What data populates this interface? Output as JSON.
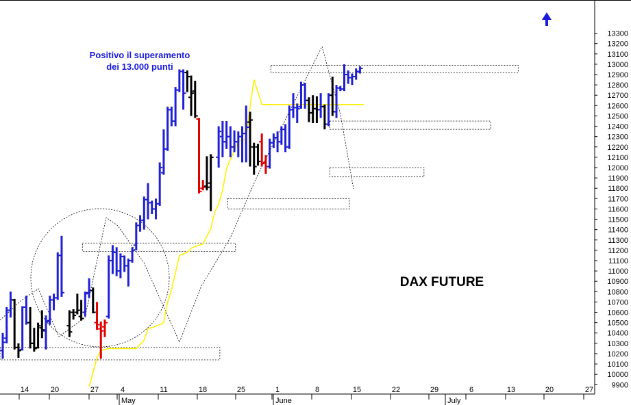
{
  "chart_data": {
    "type": "bar",
    "subtype": "ohlc",
    "title": "DAX FUTURE",
    "annotation": [
      "Positivo il superamento",
      "dei 13.000 punti"
    ],
    "y_range": [
      9800,
      13350
    ],
    "y_ticks": [
      9900,
      10000,
      10100,
      10200,
      10300,
      10400,
      10500,
      10600,
      10700,
      10800,
      10900,
      11000,
      11100,
      11200,
      11300,
      11400,
      11500,
      11600,
      11700,
      11800,
      11900,
      12000,
      12100,
      12200,
      12300,
      12400,
      12500,
      12600,
      12700,
      12800,
      12900,
      13000,
      13100,
      13200,
      13300
    ],
    "x_tick_labels": [
      "14",
      "20",
      "27",
      "4",
      "11",
      "18",
      "25",
      "1",
      "8",
      "15",
      "22",
      "29",
      "6",
      "13",
      "20",
      "27"
    ],
    "month_labels": [
      "May",
      "June",
      "July"
    ],
    "grid": false,
    "colors": {
      "up": "#1f1fd6",
      "down": "#000000",
      "neutral": "#e00000",
      "moving_average": "#ffef00",
      "arrow": "#1a1adc"
    },
    "bars": [
      {
        "x": 0,
        "o": 10230,
        "h": 10400,
        "l": 10150,
        "c": 10310,
        "t": "u"
      },
      {
        "x": 1,
        "o": 10350,
        "h": 10650,
        "l": 10300,
        "c": 10620,
        "t": "u"
      },
      {
        "x": 2,
        "o": 10620,
        "h": 10800,
        "l": 10550,
        "c": 10720,
        "t": "u"
      },
      {
        "x": 3,
        "o": 10720,
        "h": 10730,
        "l": 10240,
        "c": 10260,
        "t": "d"
      },
      {
        "x": 4,
        "o": 10260,
        "h": 10300,
        "l": 10160,
        "c": 10230,
        "t": "d"
      },
      {
        "x": 5,
        "o": 10240,
        "h": 10660,
        "l": 10230,
        "c": 10650,
        "t": "u"
      },
      {
        "x": 6,
        "o": 10650,
        "h": 10760,
        "l": 10480,
        "c": 10500,
        "t": "u"
      },
      {
        "x": 7,
        "o": 10500,
        "h": 10650,
        "l": 10250,
        "c": 10300,
        "t": "d"
      },
      {
        "x": 8,
        "o": 10300,
        "h": 10450,
        "l": 10220,
        "c": 10250,
        "t": "d"
      },
      {
        "x": 9,
        "o": 10260,
        "h": 10500,
        "l": 10250,
        "c": 10470,
        "t": "d"
      },
      {
        "x": 10,
        "o": 10450,
        "h": 10620,
        "l": 10350,
        "c": 10430,
        "t": "d"
      },
      {
        "x": 11,
        "o": 10420,
        "h": 10570,
        "l": 10240,
        "c": 10510,
        "t": "u"
      },
      {
        "x": 12,
        "o": 10520,
        "h": 10760,
        "l": 10480,
        "c": 10720,
        "t": "u"
      },
      {
        "x": 13,
        "o": 10720,
        "h": 10780,
        "l": 10620,
        "c": 10740,
        "t": "u"
      },
      {
        "x": 14,
        "o": 10740,
        "h": 11180,
        "l": 10720,
        "c": 11150,
        "t": "u"
      },
      {
        "x": 15,
        "o": 11150,
        "h": 11340,
        "l": 10750,
        "c": 10790,
        "t": "u"
      },
      {
        "x": 17,
        "o": 10470,
        "h": 10620,
        "l": 10360,
        "c": 10410,
        "t": "d"
      },
      {
        "x": 18,
        "o": 10600,
        "h": 10630,
        "l": 10530,
        "c": 10570,
        "t": "d"
      },
      {
        "x": 19,
        "o": 10600,
        "h": 10780,
        "l": 10580,
        "c": 10620,
        "t": "d"
      },
      {
        "x": 20,
        "o": 10560,
        "h": 10720,
        "l": 10520,
        "c": 10540,
        "t": "d"
      },
      {
        "x": 21,
        "o": 10600,
        "h": 10800,
        "l": 10560,
        "c": 10780,
        "t": "u"
      },
      {
        "x": 22,
        "o": 10790,
        "h": 10930,
        "l": 10740,
        "c": 10810,
        "t": "u"
      },
      {
        "x": 23,
        "o": 10810,
        "h": 10840,
        "l": 10590,
        "c": 10600,
        "t": "d"
      },
      {
        "x": 24,
        "o": 10500,
        "h": 10700,
        "l": 10430,
        "c": 10480,
        "t": "n"
      },
      {
        "x": 25,
        "o": 10440,
        "h": 10510,
        "l": 10150,
        "c": 10420,
        "t": "n"
      },
      {
        "x": 26,
        "o": 10460,
        "h": 10530,
        "l": 10360,
        "c": 10500,
        "t": "n"
      },
      {
        "x": 27,
        "o": 10560,
        "h": 11150,
        "l": 10540,
        "c": 11100,
        "t": "u"
      },
      {
        "x": 28,
        "o": 11100,
        "h": 11250,
        "l": 10970,
        "c": 11180,
        "t": "u"
      },
      {
        "x": 29,
        "o": 11180,
        "h": 11230,
        "l": 10950,
        "c": 11000,
        "t": "u"
      },
      {
        "x": 30,
        "o": 11000,
        "h": 11170,
        "l": 10930,
        "c": 11140,
        "t": "u"
      },
      {
        "x": 31,
        "o": 11140,
        "h": 11150,
        "l": 10990,
        "c": 11050,
        "t": "u"
      },
      {
        "x": 32,
        "o": 11050,
        "h": 11120,
        "l": 10850,
        "c": 11100,
        "t": "u"
      },
      {
        "x": 33,
        "o": 11100,
        "h": 11230,
        "l": 11080,
        "c": 11200,
        "t": "u"
      },
      {
        "x": 34,
        "o": 11250,
        "h": 11470,
        "l": 11200,
        "c": 11440,
        "t": "u"
      },
      {
        "x": 35,
        "o": 11440,
        "h": 11540,
        "l": 11380,
        "c": 11490,
        "t": "u"
      },
      {
        "x": 36,
        "o": 11490,
        "h": 11720,
        "l": 11400,
        "c": 11690,
        "t": "u"
      },
      {
        "x": 37,
        "o": 11690,
        "h": 11850,
        "l": 11500,
        "c": 11660,
        "t": "u"
      },
      {
        "x": 38,
        "o": 11660,
        "h": 11680,
        "l": 11550,
        "c": 11600,
        "t": "u"
      },
      {
        "x": 39,
        "o": 11600,
        "h": 11700,
        "l": 11500,
        "c": 11650,
        "t": "u"
      },
      {
        "x": 40,
        "o": 11650,
        "h": 12050,
        "l": 11630,
        "c": 12000,
        "t": "u"
      },
      {
        "x": 41,
        "o": 11950,
        "h": 12370,
        "l": 11930,
        "c": 12180,
        "t": "u"
      },
      {
        "x": 42,
        "o": 12180,
        "h": 12590,
        "l": 12160,
        "c": 12560,
        "t": "u"
      },
      {
        "x": 43,
        "o": 12560,
        "h": 12590,
        "l": 12400,
        "c": 12450,
        "t": "u"
      },
      {
        "x": 44,
        "o": 12450,
        "h": 12780,
        "l": 12400,
        "c": 12750,
        "t": "u"
      },
      {
        "x": 45,
        "o": 12750,
        "h": 12950,
        "l": 12730,
        "c": 12930,
        "t": "u"
      },
      {
        "x": 46,
        "o": 12930,
        "h": 12950,
        "l": 12560,
        "c": 12720,
        "t": "u"
      },
      {
        "x": 47,
        "o": 12920,
        "h": 12940,
        "l": 12730,
        "c": 12880,
        "t": "d"
      },
      {
        "x": 48,
        "o": 12680,
        "h": 12890,
        "l": 12500,
        "c": 12720,
        "t": "d"
      },
      {
        "x": 49,
        "o": 12740,
        "h": 12840,
        "l": 12480,
        "c": 12500,
        "t": "d"
      },
      {
        "x": 50,
        "o": 12470,
        "h": 12480,
        "l": 11750,
        "c": 11770,
        "t": "n"
      },
      {
        "x": 51,
        "o": 11800,
        "h": 11880,
        "l": 11780,
        "c": 11810,
        "t": "n"
      },
      {
        "x": 52,
        "o": 11820,
        "h": 12110,
        "l": 11780,
        "c": 11810,
        "t": "d"
      },
      {
        "x": 53,
        "o": 11850,
        "h": 12130,
        "l": 11580,
        "c": 12100,
        "t": "d"
      },
      {
        "x": 55,
        "o": 12100,
        "h": 12400,
        "l": 12000,
        "c": 12350,
        "t": "u"
      },
      {
        "x": 56,
        "o": 12300,
        "h": 12450,
        "l": 12100,
        "c": 12250,
        "t": "u"
      },
      {
        "x": 57,
        "o": 12250,
        "h": 12450,
        "l": 12180,
        "c": 12300,
        "t": "u"
      },
      {
        "x": 58,
        "o": 12300,
        "h": 12400,
        "l": 12100,
        "c": 12200,
        "t": "u"
      },
      {
        "x": 59,
        "o": 12200,
        "h": 12360,
        "l": 12150,
        "c": 12250,
        "t": "u"
      },
      {
        "x": 60,
        "o": 12250,
        "h": 12350,
        "l": 12100,
        "c": 12300,
        "t": "u"
      },
      {
        "x": 61,
        "o": 12300,
        "h": 12400,
        "l": 12050,
        "c": 12330,
        "t": "u"
      },
      {
        "x": 62,
        "o": 12330,
        "h": 12600,
        "l": 12050,
        "c": 12390,
        "t": "u"
      },
      {
        "x": 63,
        "o": 12440,
        "h": 12540,
        "l": 12010,
        "c": 12460,
        "t": "d"
      },
      {
        "x": 64,
        "o": 12200,
        "h": 12240,
        "l": 11930,
        "c": 12010,
        "t": "d"
      },
      {
        "x": 65,
        "o": 12200,
        "h": 12230,
        "l": 12020,
        "c": 12060,
        "t": "d"
      },
      {
        "x": 66,
        "o": 12250,
        "h": 12330,
        "l": 12010,
        "c": 12040,
        "t": "n"
      },
      {
        "x": 67,
        "o": 12050,
        "h": 12120,
        "l": 11940,
        "c": 12010,
        "t": "n"
      },
      {
        "x": 68,
        "o": 12010,
        "h": 12280,
        "l": 11990,
        "c": 12240,
        "t": "u"
      },
      {
        "x": 69,
        "o": 12240,
        "h": 12330,
        "l": 12190,
        "c": 12290,
        "t": "u"
      },
      {
        "x": 70,
        "o": 12290,
        "h": 12350,
        "l": 12150,
        "c": 12250,
        "t": "u"
      },
      {
        "x": 71,
        "o": 12250,
        "h": 12400,
        "l": 12220,
        "c": 12370,
        "t": "u"
      },
      {
        "x": 72,
        "o": 12370,
        "h": 12420,
        "l": 12150,
        "c": 12200,
        "t": "u"
      },
      {
        "x": 73,
        "o": 12200,
        "h": 12600,
        "l": 12180,
        "c": 12560,
        "t": "u"
      },
      {
        "x": 74,
        "o": 12560,
        "h": 12720,
        "l": 12480,
        "c": 12580,
        "t": "u"
      },
      {
        "x": 75,
        "o": 12580,
        "h": 12620,
        "l": 12430,
        "c": 12570,
        "t": "u"
      },
      {
        "x": 76,
        "o": 12590,
        "h": 12830,
        "l": 12570,
        "c": 12800,
        "t": "u"
      },
      {
        "x": 77,
        "o": 12800,
        "h": 12820,
        "l": 12570,
        "c": 12650,
        "t": "u"
      },
      {
        "x": 78,
        "o": 12650,
        "h": 12680,
        "l": 12440,
        "c": 12530,
        "t": "d"
      },
      {
        "x": 79,
        "o": 12530,
        "h": 12700,
        "l": 12430,
        "c": 12570,
        "t": "d"
      },
      {
        "x": 80,
        "o": 12570,
        "h": 12690,
        "l": 12430,
        "c": 12560,
        "t": "d"
      },
      {
        "x": 81,
        "o": 12560,
        "h": 12720,
        "l": 12480,
        "c": 12590,
        "t": "u"
      },
      {
        "x": 82,
        "o": 12590,
        "h": 12610,
        "l": 12370,
        "c": 12420,
        "t": "d"
      },
      {
        "x": 83,
        "o": 12420,
        "h": 12720,
        "l": 12400,
        "c": 12700,
        "t": "u"
      },
      {
        "x": 84,
        "o": 12700,
        "h": 12880,
        "l": 12500,
        "c": 12540,
        "t": "d"
      },
      {
        "x": 85,
        "o": 12540,
        "h": 12800,
        "l": 12480,
        "c": 12770,
        "t": "u"
      },
      {
        "x": 86,
        "o": 12770,
        "h": 12790,
        "l": 12740,
        "c": 12760,
        "t": "u"
      },
      {
        "x": 87,
        "o": 12760,
        "h": 13000,
        "l": 12740,
        "c": 12900,
        "t": "u"
      },
      {
        "x": 88,
        "o": 12900,
        "h": 12940,
        "l": 12810,
        "c": 12870,
        "t": "u"
      },
      {
        "x": 89,
        "o": 12870,
        "h": 12910,
        "l": 12800,
        "c": 12880,
        "t": "u"
      },
      {
        "x": 90,
        "o": 12880,
        "h": 12960,
        "l": 12850,
        "c": 12930,
        "t": "u"
      },
      {
        "x": 91,
        "o": 12930,
        "h": 12980,
        "l": 12910,
        "c": 12960,
        "t": "u"
      }
    ],
    "moving_average": [
      [
        22,
        9880
      ],
      [
        24,
        10160
      ],
      [
        25,
        10230
      ],
      [
        27,
        10250
      ],
      [
        29,
        10250
      ],
      [
        33,
        10250
      ],
      [
        34,
        10250
      ],
      [
        36,
        10330
      ],
      [
        37,
        10440
      ],
      [
        40,
        10480
      ],
      [
        41,
        10500
      ],
      [
        42,
        10700
      ],
      [
        43,
        10820
      ],
      [
        45,
        11150
      ],
      [
        47,
        11180
      ],
      [
        48,
        11220
      ],
      [
        50,
        11250
      ],
      [
        51,
        11260
      ],
      [
        53,
        11410
      ],
      [
        54,
        11570
      ],
      [
        55,
        11650
      ],
      [
        56,
        11780
      ],
      [
        57,
        11990
      ],
      [
        58,
        12080
      ],
      [
        60,
        12250
      ],
      [
        62,
        12280
      ],
      [
        63,
        12590
      ],
      [
        64,
        12850
      ],
      [
        66,
        12610
      ],
      [
        70,
        12610
      ],
      [
        75,
        12610
      ],
      [
        80,
        12610
      ],
      [
        85,
        12610
      ],
      [
        90,
        12610
      ],
      [
        92,
        12610
      ]
    ],
    "support_resistance_zones": [
      {
        "x0": 0,
        "x1": 56,
        "y0": 10140,
        "y1": 10260
      },
      {
        "x0": 21,
        "x1": 60,
        "y0": 11190,
        "y1": 11270
      },
      {
        "x0": 58,
        "x1": 89,
        "y0": 11600,
        "y1": 11700
      },
      {
        "x0": 84,
        "x1": 108,
        "y0": 11910,
        "y1": 12000
      },
      {
        "x0": 84,
        "x1": 125,
        "y0": 12370,
        "y1": 12450
      },
      {
        "x0": 69,
        "x1": 132,
        "y0": 12920,
        "y1": 12990
      }
    ]
  }
}
